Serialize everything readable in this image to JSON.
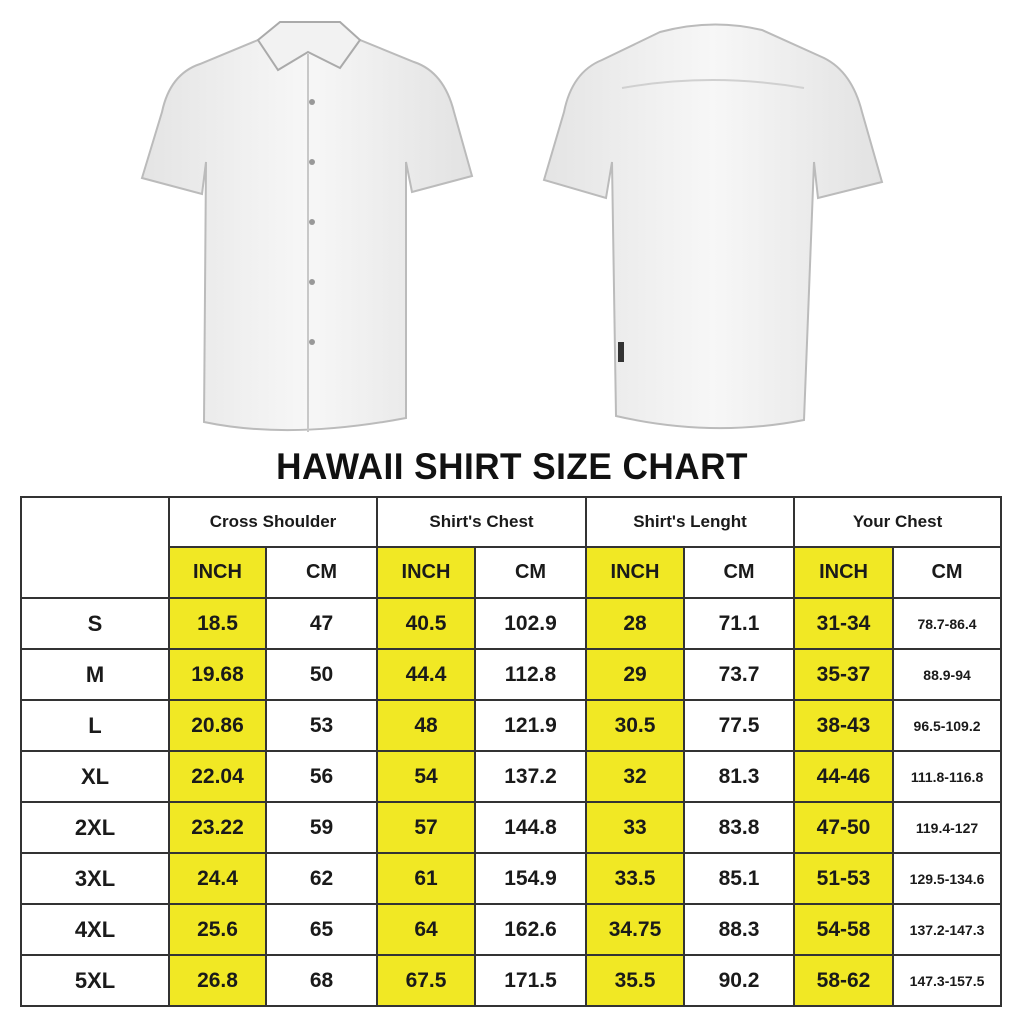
{
  "title": "HAWAII SHIRT SIZE CHART",
  "colors": {
    "highlight": "#f1e824",
    "border": "#333333"
  },
  "images": {
    "front": "white short-sleeve shirt front",
    "back": "white short-sleeve shirt back"
  },
  "table": {
    "groups": [
      "Cross Shoulder",
      "Shirt's Chest",
      "Shirt's Lenght",
      "Your Chest"
    ],
    "units": [
      "INCH",
      "CM",
      "INCH",
      "CM",
      "INCH",
      "CM",
      "INCH",
      "CM"
    ],
    "rows": [
      {
        "size": "S",
        "values": [
          "18.5",
          "47",
          "40.5",
          "102.9",
          "28",
          "71.1",
          "31-34",
          "78.7-86.4"
        ]
      },
      {
        "size": "M",
        "values": [
          "19.68",
          "50",
          "44.4",
          "112.8",
          "29",
          "73.7",
          "35-37",
          "88.9-94"
        ]
      },
      {
        "size": "L",
        "values": [
          "20.86",
          "53",
          "48",
          "121.9",
          "30.5",
          "77.5",
          "38-43",
          "96.5-109.2"
        ]
      },
      {
        "size": "XL",
        "values": [
          "22.04",
          "56",
          "54",
          "137.2",
          "32",
          "81.3",
          "44-46",
          "111.8-116.8"
        ]
      },
      {
        "size": "2XL",
        "values": [
          "23.22",
          "59",
          "57",
          "144.8",
          "33",
          "83.8",
          "47-50",
          "119.4-127"
        ]
      },
      {
        "size": "3XL",
        "values": [
          "24.4",
          "62",
          "61",
          "154.9",
          "33.5",
          "85.1",
          "51-53",
          "129.5-134.6"
        ]
      },
      {
        "size": "4XL",
        "values": [
          "25.6",
          "65",
          "64",
          "162.6",
          "34.75",
          "88.3",
          "54-58",
          "137.2-147.3"
        ]
      },
      {
        "size": "5XL",
        "values": [
          "26.8",
          "68",
          "67.5",
          "171.5",
          "35.5",
          "90.2",
          "58-62",
          "147.3-157.5"
        ]
      }
    ]
  }
}
